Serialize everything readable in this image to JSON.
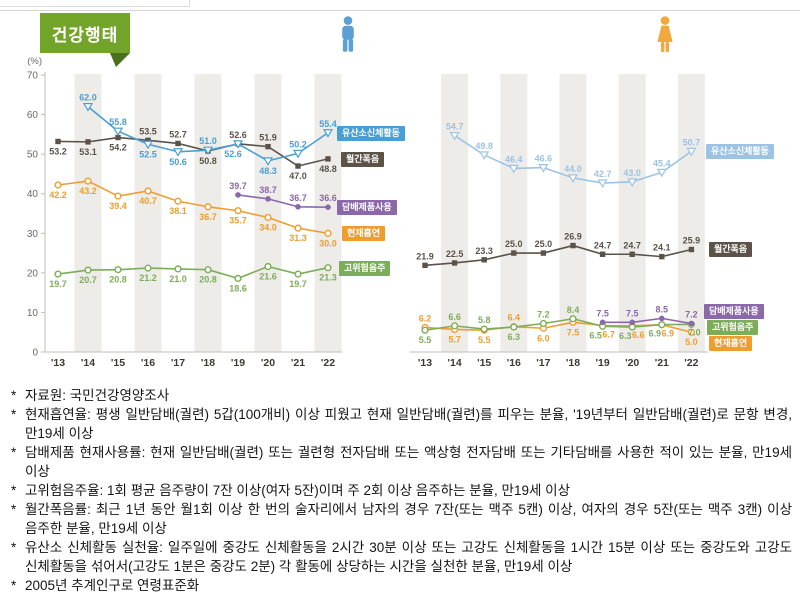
{
  "header": {
    "title": "건강행태"
  },
  "bullet": "*",
  "accent": {
    "badge_green": "#72a42a",
    "badge_fold": "#4b701c",
    "band_gray": "#edece9",
    "male_icon_blue": "#5b9fd4",
    "female_icon_orange": "#f2a93b"
  },
  "chart_data": [
    {
      "type": "line",
      "group_icon": "male-figure-icon",
      "y_axis": {
        "unit": "(%)",
        "ticks": [
          70,
          60,
          50,
          40,
          30,
          20,
          10,
          0
        ],
        "range": [
          0,
          70
        ]
      },
      "categories": [
        "'13",
        "'14",
        "'15",
        "'16",
        "'17",
        "'18",
        "'19",
        "'20",
        "'21",
        "'22"
      ],
      "series": [
        {
          "name": "유산소신체활동",
          "color": "#479fd6",
          "marker": "triangle-down",
          "values": [
            null,
            62.0,
            55.8,
            52.5,
            50.6,
            51.0,
            52.6,
            48.3,
            50.2,
            55.4
          ]
        },
        {
          "name": "월간폭음",
          "color": "#5b5248",
          "marker": "square",
          "values": [
            53.2,
            53.1,
            54.2,
            53.5,
            52.7,
            50.8,
            52.6,
            51.9,
            47.0,
            48.8
          ]
        },
        {
          "name": "담배제품사용",
          "color": "#8a68aa",
          "marker": "dot",
          "values": [
            null,
            null,
            null,
            null,
            null,
            null,
            39.7,
            38.7,
            36.7,
            36.6
          ]
        },
        {
          "name": "현재흡연",
          "color": "#f09d30",
          "marker": "circle",
          "values": [
            42.2,
            43.2,
            39.4,
            40.7,
            38.1,
            36.7,
            35.7,
            34.0,
            31.3,
            30.0
          ]
        },
        {
          "name": "고위험음주",
          "color": "#7cad58",
          "marker": "circle",
          "values": [
            19.7,
            20.7,
            20.8,
            21.2,
            21.0,
            20.8,
            18.6,
            21.6,
            19.7,
            21.3
          ]
        }
      ]
    },
    {
      "type": "line",
      "group_icon": "female-figure-icon",
      "y_axis": {
        "unit": "",
        "ticks": [],
        "range": [
          0,
          70
        ]
      },
      "categories": [
        "'13",
        "'14",
        "'15",
        "'16",
        "'17",
        "'18",
        "'19",
        "'20",
        "'21",
        "'22"
      ],
      "series": [
        {
          "name": "유산소신체활동",
          "color": "#9dc3e4",
          "marker": "triangle-down",
          "values": [
            null,
            54.7,
            49.8,
            46.4,
            46.6,
            44.0,
            42.7,
            43.0,
            45.4,
            50.7
          ]
        },
        {
          "name": "월간폭음",
          "color": "#5b5248",
          "marker": "square",
          "values": [
            21.9,
            22.5,
            23.3,
            25.0,
            25.0,
            26.9,
            24.7,
            24.7,
            24.1,
            25.9
          ]
        },
        {
          "name": "담배제품사용",
          "color": "#8a68aa",
          "marker": "dot",
          "values": [
            null,
            null,
            null,
            null,
            null,
            null,
            7.5,
            7.5,
            8.5,
            7.2
          ]
        },
        {
          "name": "현재흡연",
          "color": "#f09d30",
          "marker": "circle",
          "values": [
            6.2,
            5.7,
            5.5,
            6.4,
            6.0,
            7.5,
            6.7,
            6.6,
            6.9,
            5.0
          ]
        },
        {
          "name": "고위험음주",
          "color": "#7cad58",
          "marker": "circle",
          "values": [
            5.5,
            6.6,
            5.8,
            6.3,
            7.2,
            8.4,
            6.5,
            6.3,
            6.9,
            7.0
          ]
        }
      ]
    }
  ],
  "footnotes": [
    "자료원: 국민건강영양조사",
    "현재흡연율: 평생 일반담배(궐련) 5갑(100개비) 이상 피웠고 현재 일반담배(궐련)를 피우는 분율, '19년부터 일반담배(궐련)로 문항 변경, 만19세 이상",
    "담배제품 현재사용률: 현재 일반담배(궐련) 또는 궐련형 전자담배 또는 액상형 전자담배 또는 기타담배를 사용한 적이 있는 분율, 만19세 이상",
    "고위험음주율: 1회 평균 음주량이 7잔 이상(여자 5잔)이며 주 2회 이상 음주하는 분율, 만19세 이상",
    "월간폭음률: 최근 1년 동안 월1회 이상 한 번의 술자리에서 남자의 경우 7잔(또는 맥주 5캔) 이상, 여자의 경우 5잔(또는 맥주 3캔) 이상 음주한 분율, 만19세 이상",
    "유산소 신체활동 실천율: 일주일에 중강도 신체활동을 2시간 30분 이상 또는 고강도 신체활동을 1시간 15분 이상 또는 중강도와 고강도 신체활동을 섞어서(고강도 1분은 중강도 2분) 각 활동에 상당하는 시간을 실천한 분율, 만19세 이상",
    "2005년 추계인구로 연령표준화"
  ]
}
